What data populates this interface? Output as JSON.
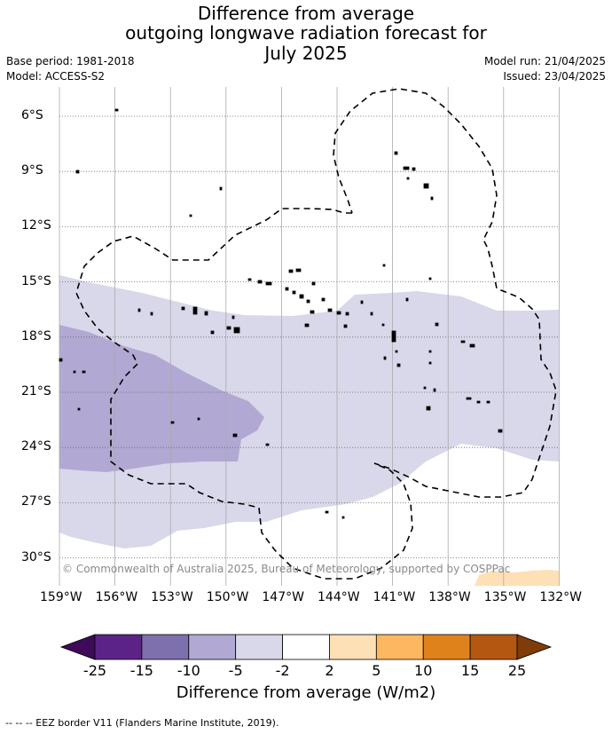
{
  "title": {
    "line1": "Difference from average",
    "line2": "outgoing longwave radiation forecast for",
    "line3": "July 2025"
  },
  "meta": {
    "base_period": "Base period: 1981-2018",
    "model": "Model: ACCESS-S2",
    "model_run": "Model run: 21/04/2025",
    "issued": "Issued: 23/04/2025"
  },
  "axes": {
    "lat_labels": [
      "6°S",
      "9°S",
      "12°S",
      "15°S",
      "18°S",
      "21°S",
      "24°S",
      "27°S",
      "30°S"
    ],
    "lon_labels": [
      "159°W",
      "156°W",
      "153°W",
      "150°W",
      "147°W",
      "144°W",
      "141°W",
      "138°W",
      "135°W",
      "132°W"
    ]
  },
  "copyright": "© Commonwealth of Australia 2025, Bureau of Meteorology, supported by COSPPac",
  "colorbar": {
    "title": "Difference from average (W/m2)",
    "ticks": [
      "-25",
      "-15",
      "-10",
      "-5",
      "-2",
      "2",
      "5",
      "10",
      "15",
      "25"
    ],
    "colors": [
      "#3f0a5a",
      "#5c2387",
      "#7e6fad",
      "#b1a9d3",
      "#d8d8ea",
      "#ffffff",
      "#fde0b6",
      "#fdb761",
      "#e0821c",
      "#b45710",
      "#7f3b08"
    ]
  },
  "legend_note": "--  --  -- EEZ border V11 (Flanders Marine Institute, 2019)."
}
